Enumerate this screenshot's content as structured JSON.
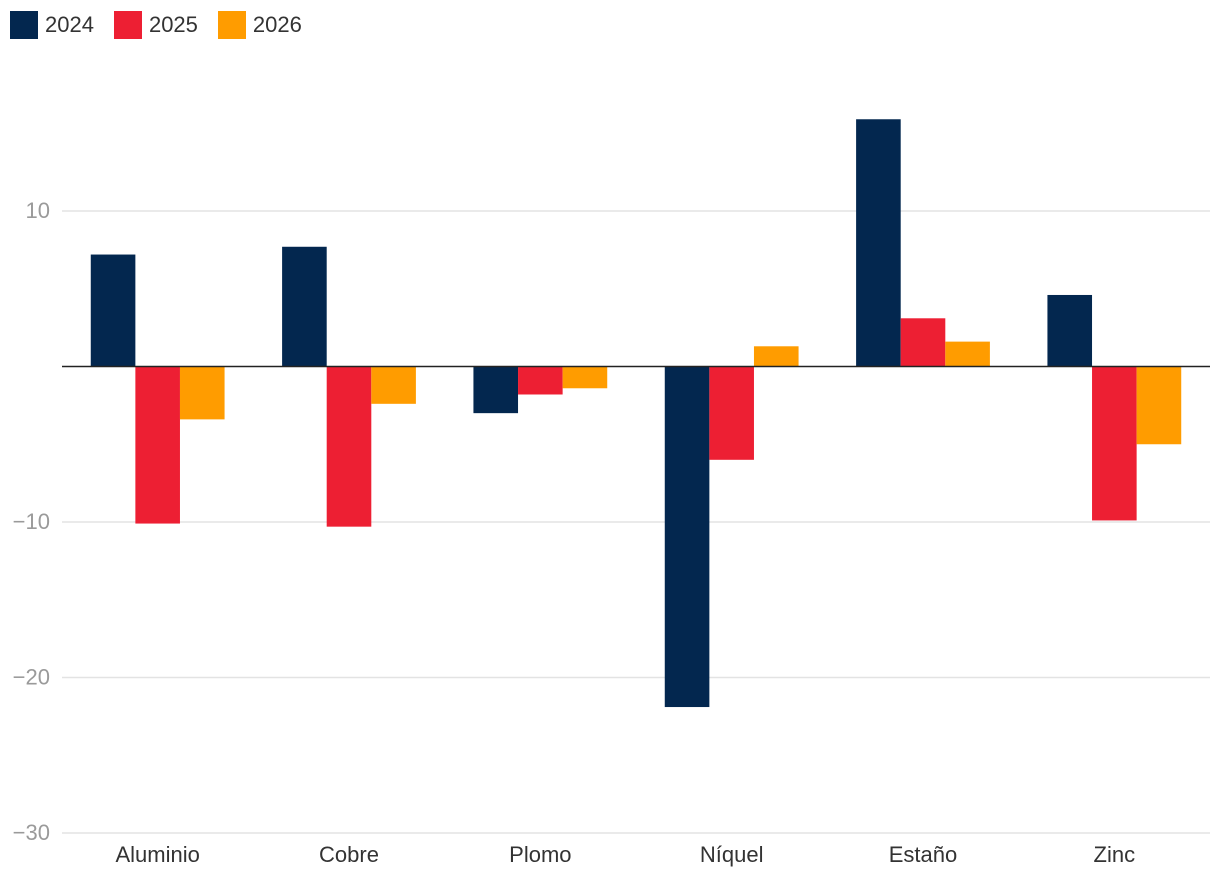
{
  "chart_data": {
    "type": "bar",
    "title": "",
    "xlabel": "",
    "ylabel": "",
    "categories": [
      "Aluminio",
      "Cobre",
      "Plomo",
      "Níquel",
      "Estaño",
      "Zinc"
    ],
    "series": [
      {
        "name": "2024",
        "color": "#03274f",
        "values": [
          7.2,
          7.7,
          -3.0,
          -21.9,
          15.9,
          4.6
        ]
      },
      {
        "name": "2025",
        "color": "#ed1f33",
        "values": [
          -10.1,
          -10.3,
          -1.8,
          -6.0,
          3.1,
          -9.9
        ]
      },
      {
        "name": "2026",
        "color": "#ff9c00",
        "values": [
          -3.4,
          -2.4,
          -1.4,
          1.3,
          1.6,
          -5.0
        ]
      }
    ],
    "ylim": [
      -30,
      20
    ],
    "yticks": [
      10,
      -10,
      -20,
      -30
    ],
    "ytick_labels": [
      "10",
      "−10",
      "−20",
      "−30"
    ],
    "grid": true,
    "legend_position": "top-left"
  }
}
